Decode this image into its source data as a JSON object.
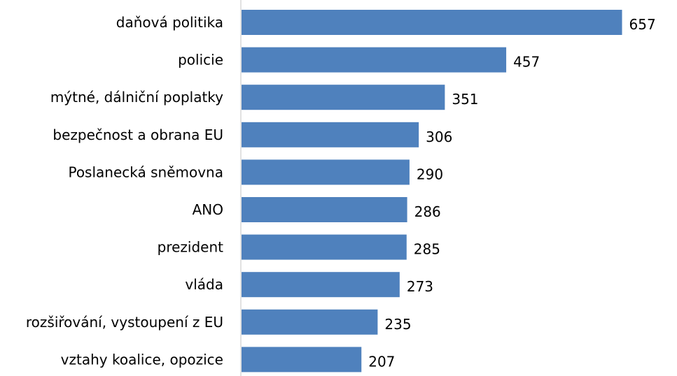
{
  "chart_data": {
    "type": "bar",
    "orientation": "horizontal",
    "categories": [
      "daňová politika",
      "policie",
      "mýtné, dálniční poplatky",
      "bezpečnost a obrana EU",
      "Poslanecká sněmovna",
      "ANO",
      "prezident",
      "vláda",
      "rozšiřování, vystoupení z EU",
      "vztahy koalice, opozice"
    ],
    "values": [
      657,
      457,
      351,
      306,
      290,
      286,
      285,
      273,
      235,
      207
    ],
    "title": "",
    "xlabel": "",
    "ylabel": "",
    "xlim": [
      0,
      660
    ],
    "grid": false,
    "legend": "none",
    "data_labels": true,
    "colors": {
      "bar": "#4f81bd",
      "axis": "#d9d9d9",
      "text": "#000000"
    }
  }
}
